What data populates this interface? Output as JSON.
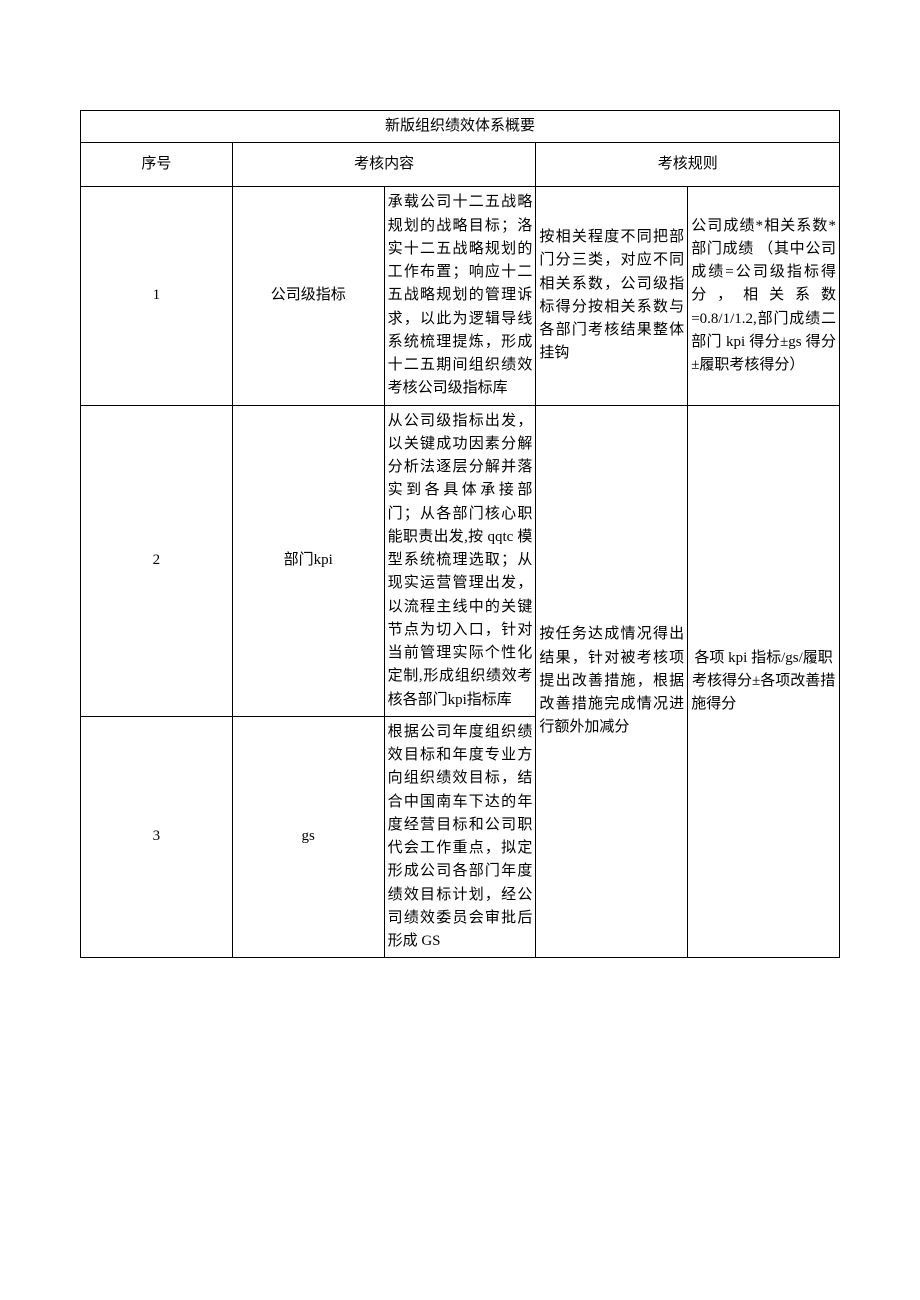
{
  "table": {
    "title": "新版组织绩效体系概要",
    "headers": {
      "seq": "序号",
      "content": "考核内容",
      "rule": "考核规则"
    },
    "rows": [
      {
        "seq": "1",
        "name": "公司级指标",
        "desc": "承载公司十二五战略规划的战略目标；洛实十二五战略规划的工作布置；响应十二五战略规划的管理诉求，以此为逻辑导线系统梳理提炼，形成十二五期间组织绩效考核公司级指标库",
        "rule1": "按相关程度不同把部门分三类，对应不同相关系数，公司级指标得分按相关系数与各部门考核结果整体挂钩",
        "rule2": "公司成绩*相关系数*部门成绩 （其中公司成绩=公司级指标得分，相关系数=0.8/1/1.2,部门成绩二部门 kpi 得分±gs 得分±履职考核得分）"
      },
      {
        "seq": "2",
        "name": "部门kpi",
        "desc": "从公司级指标出发，以关键成功因素分解分析法逐层分解并落实到各具体承接部门；从各部门核心职能职责出发,按 qqtc 模型系统梳理选取；从现实运营管理出发，以流程主线中的关键节点为切入口，针对当前管理实际个性化定制,形成组织绩效考核各部门kpi指标库",
        "rule1": "按任务达成情况得出结果，针对被考核项提出改善措施，根据改善措施完成情况进行额外加减分",
        "rule2": "各项 kpi 指标/gs/履职考核得分±各项改善措施得分"
      },
      {
        "seq": "3",
        "name": "gs",
        "desc": "根据公司年度组织绩效目标和年度专业方向组织绩效目标，结合中国南车下达的年度经营目标和公司职代会工作重点，拟定形成公司各部门年度绩效目标计划，经公司绩效委员会审批后形成 GS"
      }
    ]
  }
}
